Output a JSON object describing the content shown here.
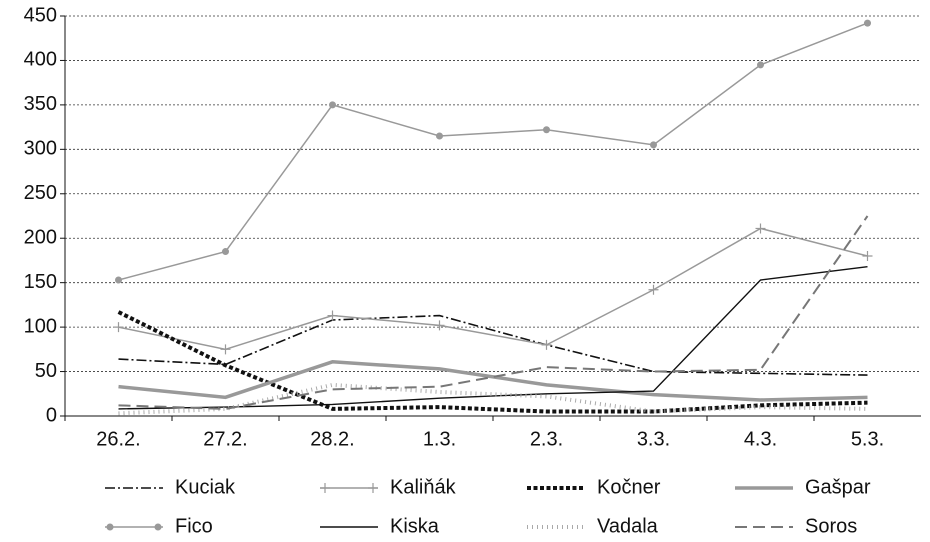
{
  "chart_data": {
    "type": "line",
    "categories": [
      "26.2.",
      "27.2.",
      "28.2.",
      "1.3.",
      "2.3.",
      "3.3.",
      "4.3.",
      "5.3."
    ],
    "ylim": [
      0,
      450
    ],
    "yticks": [
      0,
      50,
      100,
      150,
      200,
      250,
      300,
      350,
      400,
      450
    ],
    "grid": true,
    "series": [
      {
        "name": "Kuciak",
        "color": "#111111",
        "dash": "10 3 2 3",
        "width": 1.6,
        "marker": "none",
        "values": [
          64,
          58,
          108,
          113,
          80,
          50,
          48,
          46
        ]
      },
      {
        "name": "Kaliňák",
        "color": "#999999",
        "dash": "none",
        "width": 1.5,
        "marker": "plus",
        "values": [
          100,
          75,
          113,
          102,
          80,
          142,
          211,
          180
        ]
      },
      {
        "name": "Kočner",
        "color": "#111111",
        "dash": "4 2.5",
        "width": 4,
        "marker": "none",
        "values": [
          117,
          57,
          8,
          10,
          5,
          5,
          12,
          15
        ]
      },
      {
        "name": "Gašpar",
        "color": "#999999",
        "dash": "none",
        "width": 3.5,
        "marker": "none",
        "values": [
          33,
          21,
          61,
          53,
          35,
          24,
          18,
          21
        ]
      },
      {
        "name": "Fico",
        "color": "#999999",
        "dash": "none",
        "width": 1.5,
        "marker": "circle",
        "values": [
          153,
          185,
          350,
          315,
          322,
          305,
          395,
          442
        ]
      },
      {
        "name": "Kiska",
        "color": "#111111",
        "dash": "none",
        "width": 1.4,
        "marker": "none",
        "values": [
          8,
          10,
          13,
          20,
          25,
          28,
          153,
          168
        ]
      },
      {
        "name": "Vadala",
        "color": "#aaaaaa",
        "dash": "1 4",
        "width": 4,
        "marker": "none",
        "values": [
          3,
          8,
          35,
          27,
          22,
          5,
          10,
          8
        ]
      },
      {
        "name": "Soros",
        "color": "#777777",
        "dash": "12 6",
        "width": 2,
        "marker": "none",
        "values": [
          12,
          8,
          30,
          33,
          55,
          50,
          52,
          225
        ]
      }
    ]
  }
}
